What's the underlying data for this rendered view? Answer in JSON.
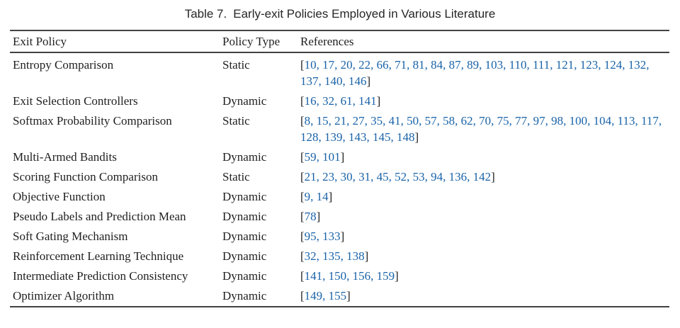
{
  "caption": {
    "label": "Table 7.",
    "text": "Early-exit Policies Employed in Various Literature"
  },
  "table": {
    "columns": [
      "Exit Policy",
      "Policy Type",
      "References"
    ],
    "rows": [
      {
        "policy": "Entropy Comparison",
        "type": "Static",
        "refs": [
          10,
          17,
          20,
          22,
          66,
          71,
          81,
          84,
          87,
          89,
          103,
          110,
          111,
          121,
          123,
          124,
          132,
          137,
          140,
          146
        ]
      },
      {
        "policy": "Exit Selection Controllers",
        "type": "Dynamic",
        "refs": [
          16,
          32,
          61,
          141
        ]
      },
      {
        "policy": "Softmax Probability Comparison",
        "type": "Static",
        "refs": [
          8,
          15,
          21,
          27,
          35,
          41,
          50,
          57,
          58,
          62,
          70,
          75,
          77,
          97,
          98,
          100,
          104,
          113,
          117,
          128,
          139,
          143,
          145,
          148
        ]
      },
      {
        "policy": "Multi-Armed Bandits",
        "type": "Dynamic",
        "refs": [
          59,
          101
        ]
      },
      {
        "policy": "Scoring Function Comparison",
        "type": "Static",
        "refs": [
          21,
          23,
          30,
          31,
          45,
          52,
          53,
          94,
          136,
          142
        ]
      },
      {
        "policy": "Objective Function",
        "type": "Dynamic",
        "refs": [
          9,
          14
        ]
      },
      {
        "policy": "Pseudo Labels and Prediction Mean",
        "type": "Dynamic",
        "refs": [
          78
        ]
      },
      {
        "policy": "Soft Gating Mechanism",
        "type": "Dynamic",
        "refs": [
          95,
          133
        ]
      },
      {
        "policy": "Reinforcement Learning Technique",
        "type": "Dynamic",
        "refs": [
          32,
          135,
          138
        ]
      },
      {
        "policy": "Intermediate Prediction Consistency",
        "type": "Dynamic",
        "refs": [
          141,
          150,
          156,
          159
        ]
      },
      {
        "policy": "Optimizer Algorithm",
        "type": "Dynamic",
        "refs": [
          149,
          155
        ]
      }
    ]
  },
  "colors": {
    "citation_blue": "#1a63a8",
    "text": "#1f1f1f",
    "rule": "#424242",
    "background": "#ffffff"
  }
}
